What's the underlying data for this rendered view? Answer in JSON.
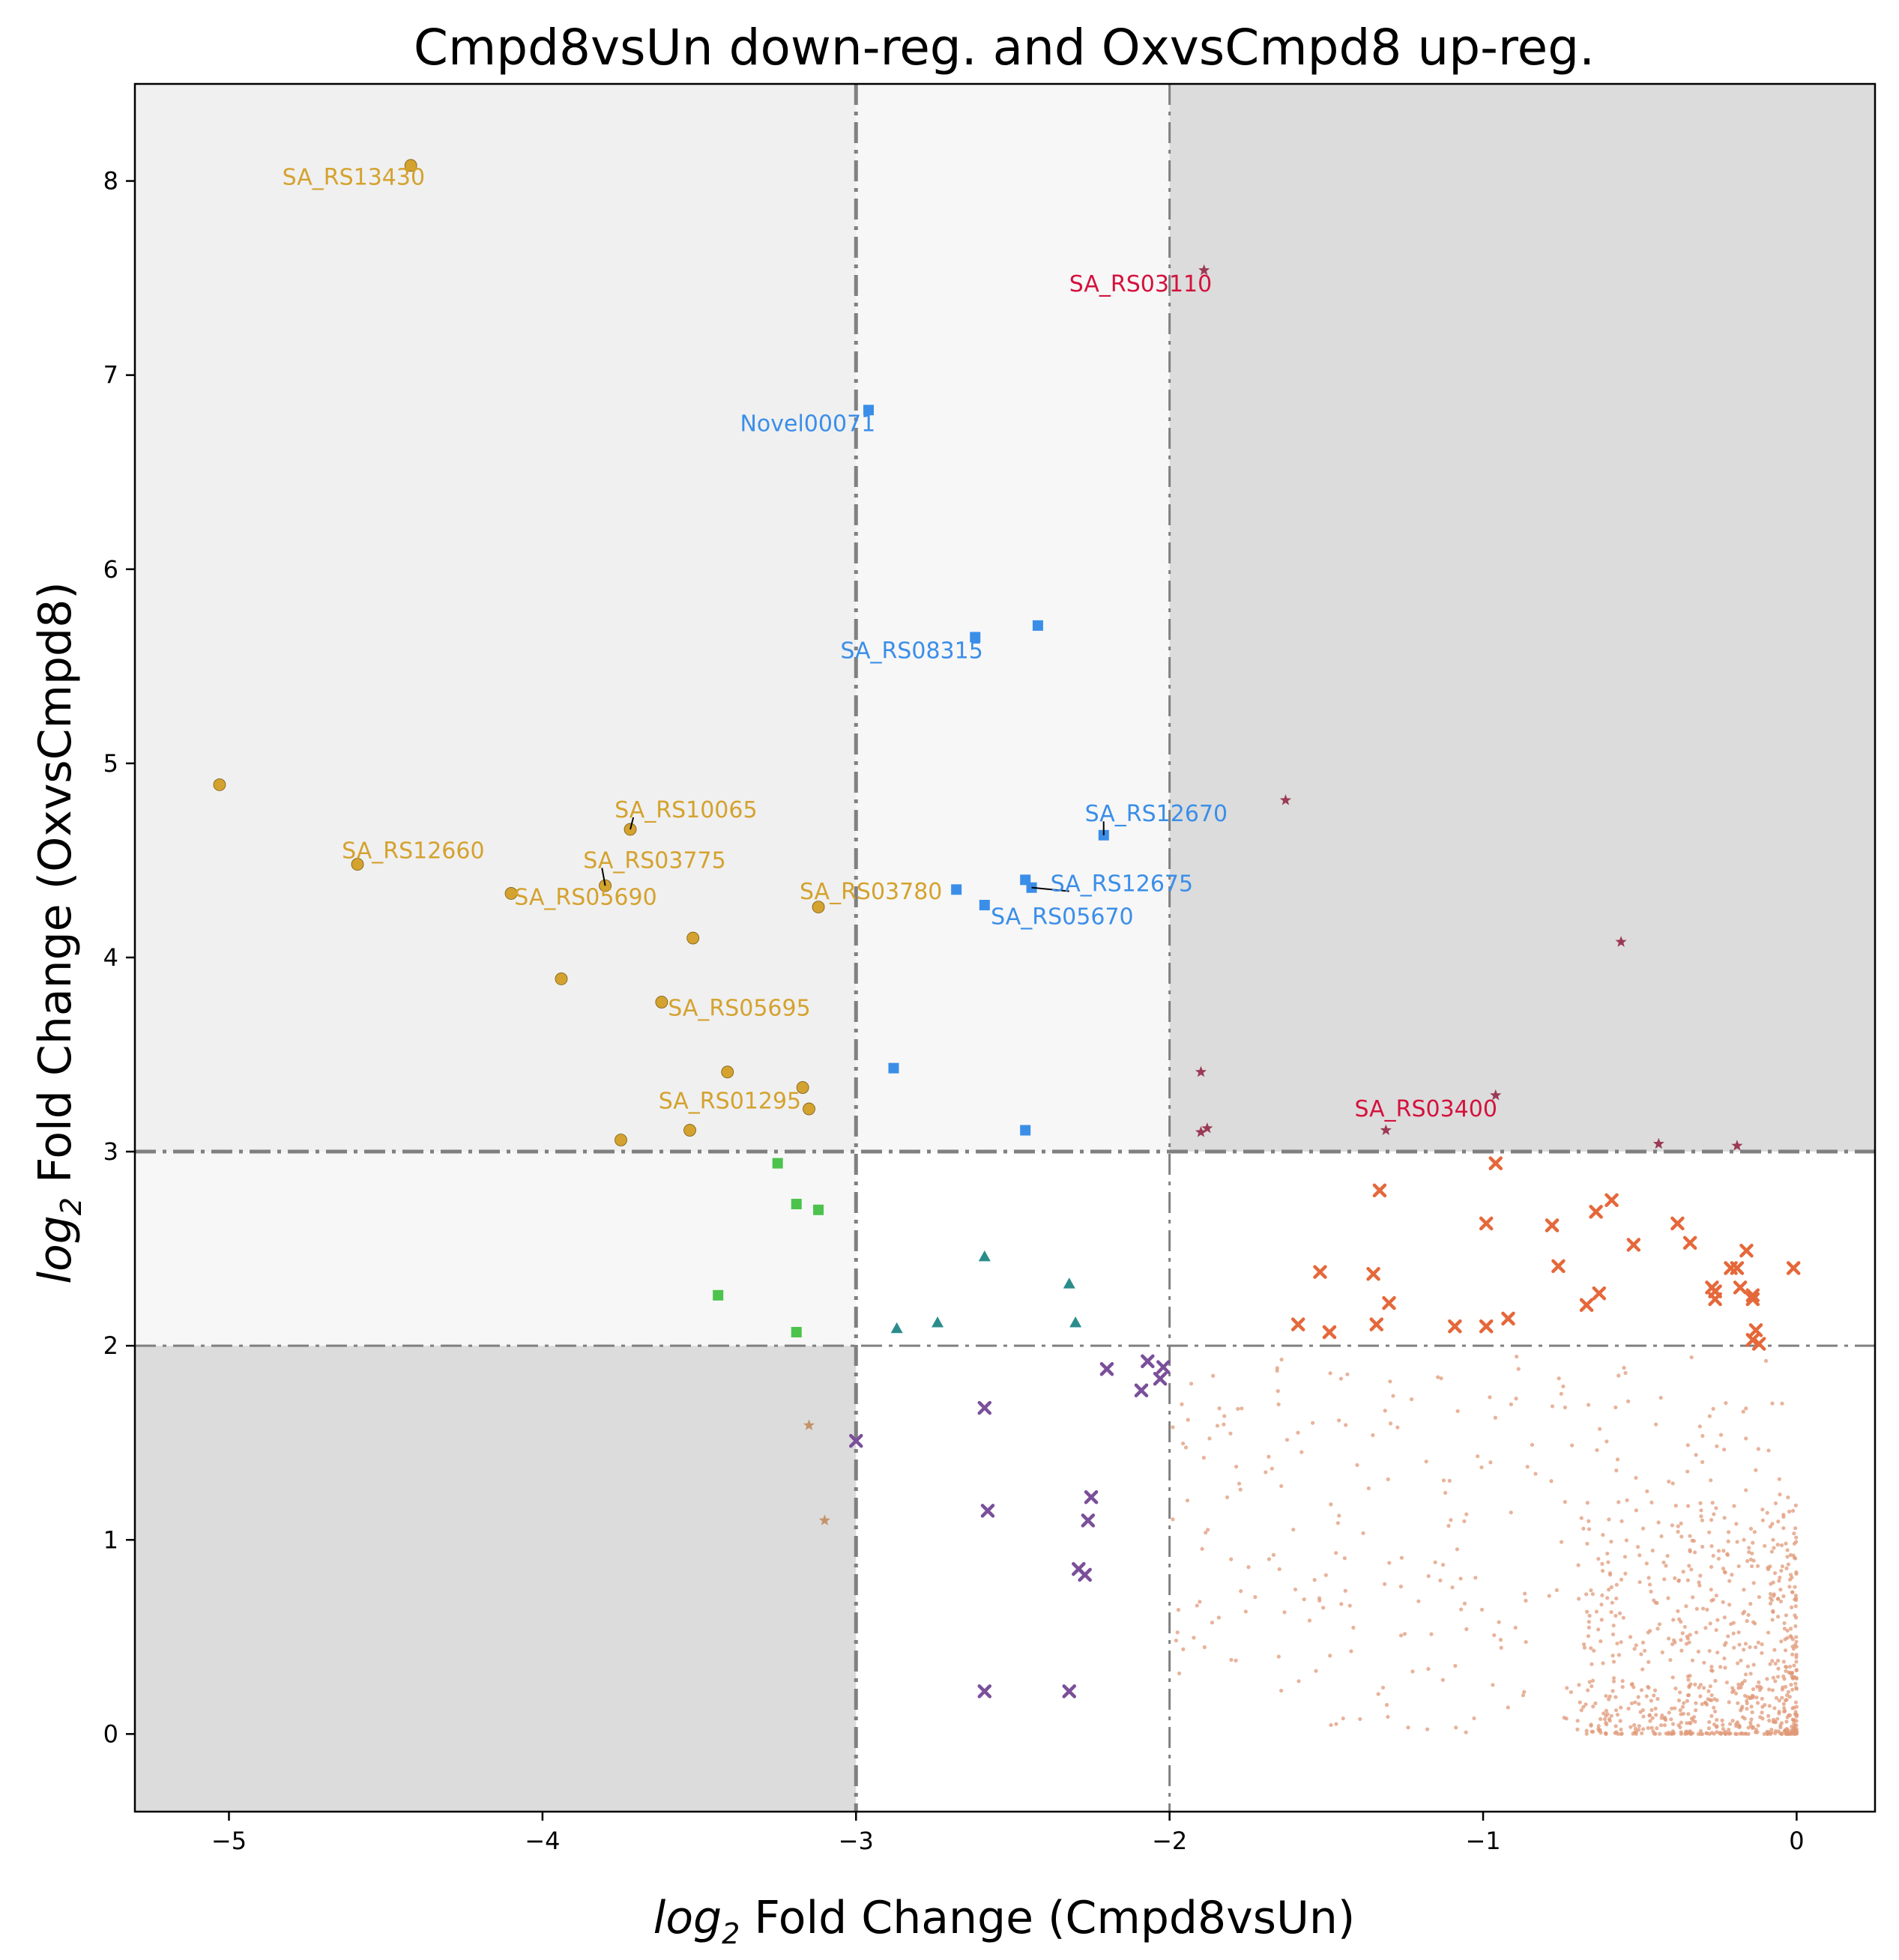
{
  "chart_data": {
    "type": "scatter",
    "title": "Cmpd8vsUn down-reg. and OxvsCmpd8 up-reg.",
    "xlabel_prefix": "log",
    "xlabel_sub": "2",
    "xlabel_rest": " Fold Change (Cmpd8vsUn)",
    "ylabel_prefix": "log",
    "ylabel_sub": "2",
    "ylabel_rest": " Fold Change (OxvsCmpd8)",
    "xlim": [
      -5.3,
      0.25
    ],
    "ylim": [
      -0.4,
      8.5
    ],
    "xticks": [
      -5,
      -4,
      -3,
      -2,
      -1,
      0
    ],
    "xtick_labels": [
      "−5",
      "−4",
      "−3",
      "−2",
      "−1",
      "0"
    ],
    "yticks": [
      0,
      1,
      2,
      3,
      4,
      5,
      6,
      7,
      8
    ],
    "ytick_labels": [
      "0",
      "1",
      "2",
      "3",
      "4",
      "5",
      "6",
      "7",
      "8"
    ],
    "thresholds": {
      "x": [
        -3,
        -2
      ],
      "y": [
        2,
        3
      ]
    },
    "grid": false,
    "colors": {
      "shade_dark": "#dcdcdc",
      "shade_mid": "#f0f0f0",
      "shade_light": "#f7f7f7",
      "threshold_line": "#808080",
      "gold": "#d4a22f",
      "blue": "#3b8ee8",
      "green": "#4cc34c",
      "teal": "#2b8c8c",
      "purple": "#7a4f9a",
      "red": "#d4123d",
      "maroon": "#9b3a55",
      "orange": "#e5683a",
      "faded": "#e09a7a",
      "tan": "#c4936a"
    },
    "series": [
      {
        "key": "gold",
        "marker": "circle",
        "color": "gold",
        "size": 8,
        "points": [
          [
            -4.42,
            8.08
          ],
          [
            -5.03,
            4.89
          ],
          [
            -4.59,
            4.48
          ],
          [
            -4.1,
            4.33
          ],
          [
            -3.8,
            4.37
          ],
          [
            -3.72,
            4.66
          ],
          [
            -3.12,
            4.26
          ],
          [
            -3.52,
            4.1
          ],
          [
            -3.94,
            3.89
          ],
          [
            -3.62,
            3.77
          ],
          [
            -3.41,
            3.41
          ],
          [
            -3.17,
            3.33
          ],
          [
            -3.15,
            3.22
          ],
          [
            -3.53,
            3.11
          ],
          [
            -3.75,
            3.06
          ]
        ]
      },
      {
        "key": "blue",
        "marker": "square",
        "color": "blue",
        "size": 7,
        "points": [
          [
            -2.96,
            6.82
          ],
          [
            -2.62,
            5.65
          ],
          [
            -2.42,
            5.71
          ],
          [
            -2.21,
            4.63
          ],
          [
            -2.46,
            4.4
          ],
          [
            -2.44,
            4.36
          ],
          [
            -2.68,
            4.35
          ],
          [
            -2.59,
            4.27
          ],
          [
            -2.88,
            3.43
          ],
          [
            -2.46,
            3.11
          ]
        ]
      },
      {
        "key": "green",
        "marker": "square",
        "color": "green",
        "size": 7,
        "points": [
          [
            -3.25,
            2.94
          ],
          [
            -3.19,
            2.73
          ],
          [
            -3.12,
            2.7
          ],
          [
            -3.44,
            2.26
          ],
          [
            -3.19,
            2.07
          ]
        ]
      },
      {
        "key": "teal",
        "marker": "triangle",
        "color": "teal",
        "size": 8,
        "points": [
          [
            -2.59,
            2.46
          ],
          [
            -2.32,
            2.32
          ],
          [
            -2.74,
            2.12
          ],
          [
            -2.3,
            2.12
          ],
          [
            -2.87,
            2.09
          ]
        ]
      },
      {
        "key": "purple",
        "marker": "cross",
        "color": "purple",
        "size": 7,
        "points": [
          [
            -2.07,
            1.92
          ],
          [
            -2.2,
            1.88
          ],
          [
            -2.02,
            1.89
          ],
          [
            -2.03,
            1.83
          ],
          [
            -2.09,
            1.77
          ],
          [
            -2.59,
            1.68
          ],
          [
            -3.0,
            1.51
          ],
          [
            -2.25,
            1.22
          ],
          [
            -2.58,
            1.15
          ],
          [
            -2.26,
            1.1
          ],
          [
            -2.29,
            0.85
          ],
          [
            -2.27,
            0.82
          ],
          [
            -2.59,
            0.22
          ],
          [
            -2.32,
            0.22
          ]
        ]
      },
      {
        "key": "red",
        "marker": "star",
        "color": "maroon",
        "size": 8,
        "points": [
          [
            -1.89,
            7.54
          ],
          [
            -1.63,
            4.81
          ],
          [
            -0.56,
            4.08
          ],
          [
            -1.9,
            3.41
          ],
          [
            -0.96,
            3.29
          ],
          [
            -1.88,
            3.12
          ],
          [
            -1.9,
            3.1
          ],
          [
            -1.31,
            3.11
          ],
          [
            -0.44,
            3.04
          ],
          [
            -0.19,
            3.03
          ]
        ]
      },
      {
        "key": "tan",
        "marker": "star",
        "color": "tan",
        "size": 8,
        "points": [
          [
            -3.15,
            1.59
          ],
          [
            -3.1,
            1.1
          ]
        ]
      },
      {
        "key": "orange",
        "marker": "cross",
        "color": "orange",
        "size": 7,
        "points": [
          [
            -0.96,
            2.94
          ],
          [
            -1.33,
            2.8
          ],
          [
            -0.59,
            2.75
          ],
          [
            -0.64,
            2.69
          ],
          [
            -0.38,
            2.63
          ],
          [
            -0.78,
            2.62
          ],
          [
            -0.99,
            2.63
          ],
          [
            -0.52,
            2.52
          ],
          [
            -0.34,
            2.53
          ],
          [
            -0.16,
            2.49
          ],
          [
            -0.76,
            2.41
          ],
          [
            -0.19,
            2.4
          ],
          [
            -0.21,
            2.4
          ],
          [
            -0.01,
            2.4
          ],
          [
            -1.52,
            2.38
          ],
          [
            -1.35,
            2.37
          ],
          [
            -0.27,
            2.3
          ],
          [
            -0.18,
            2.3
          ],
          [
            -0.26,
            2.28
          ],
          [
            -0.63,
            2.27
          ],
          [
            -0.14,
            2.26
          ],
          [
            -0.26,
            2.24
          ],
          [
            -0.14,
            2.24
          ],
          [
            -1.3,
            2.22
          ],
          [
            -0.67,
            2.21
          ],
          [
            -0.92,
            2.14
          ],
          [
            -1.59,
            2.11
          ],
          [
            -1.34,
            2.11
          ],
          [
            -1.09,
            2.1
          ],
          [
            -0.99,
            2.1
          ],
          [
            -0.13,
            2.08
          ],
          [
            -1.49,
            2.07
          ],
          [
            -0.14,
            2.03
          ],
          [
            -0.12,
            2.01
          ]
        ]
      }
    ],
    "annotations": [
      {
        "text": "SA_RS13430",
        "x": -4.42,
        "y": 8.08,
        "color": "gold",
        "lx": -4.83,
        "ly": 8.02,
        "leader": false
      },
      {
        "text": "SA_RS03110",
        "x": -1.89,
        "y": 7.54,
        "color": "red",
        "lx": -2.32,
        "ly": 7.47,
        "leader": false
      },
      {
        "text": "Novel00071",
        "x": -2.96,
        "y": 6.82,
        "color": "blue",
        "lx": -3.37,
        "ly": 6.75,
        "leader": false
      },
      {
        "text": "SA_RS08315",
        "x": -2.62,
        "y": 5.65,
        "color": "blue",
        "lx": -3.05,
        "ly": 5.58,
        "leader": false
      },
      {
        "text": "SA_RS12670",
        "x": -2.21,
        "y": 4.63,
        "color": "blue",
        "lx": -2.27,
        "ly": 4.74,
        "leader": true
      },
      {
        "text": "SA_RS10065",
        "x": -3.72,
        "y": 4.66,
        "color": "gold",
        "lx": -3.77,
        "ly": 4.76,
        "leader": true
      },
      {
        "text": "SA_RS12660",
        "x": -4.59,
        "y": 4.48,
        "color": "gold",
        "lx": -4.64,
        "ly": 4.55,
        "leader": false
      },
      {
        "text": "SA_RS03775",
        "x": -3.8,
        "y": 4.37,
        "color": "gold",
        "lx": -3.87,
        "ly": 4.5,
        "leader": true
      },
      {
        "text": "SA_RS12675",
        "x": -2.44,
        "y": 4.36,
        "color": "blue",
        "lx": -2.38,
        "ly": 4.38,
        "leader": true
      },
      {
        "text": "SA_RS05690",
        "x": -4.1,
        "y": 4.33,
        "color": "gold",
        "lx": -4.09,
        "ly": 4.31,
        "leader": false
      },
      {
        "text": "SA_RS03780",
        "x": -3.12,
        "y": 4.26,
        "color": "gold",
        "lx": -3.18,
        "ly": 4.34,
        "leader": false
      },
      {
        "text": "SA_RS05670",
        "x": -2.59,
        "y": 4.27,
        "color": "blue",
        "lx": -2.57,
        "ly": 4.21,
        "leader": false
      },
      {
        "text": "SA_RS05695",
        "x": -3.62,
        "y": 3.77,
        "color": "gold",
        "lx": -3.6,
        "ly": 3.74,
        "leader": false
      },
      {
        "text": "SA_RS01295",
        "x": -3.17,
        "y": 3.33,
        "color": "gold",
        "lx": -3.63,
        "ly": 3.26,
        "leader": false
      },
      {
        "text": "SA_RS03400",
        "x": -0.96,
        "y": 3.29,
        "color": "red",
        "lx": -1.41,
        "ly": 3.22,
        "leader": false
      }
    ],
    "background_cloud": {
      "color": "faded",
      "description_count": 1000,
      "x_range": [
        -2.0,
        0.0
      ],
      "y_range": [
        0.0,
        1.95
      ],
      "density": "concentrated near x=0, y=0"
    }
  }
}
